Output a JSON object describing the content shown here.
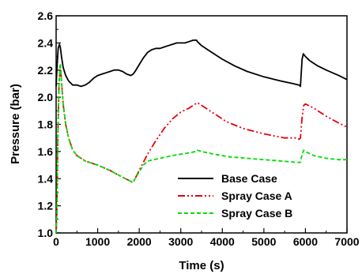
{
  "chart_data": {
    "type": "line",
    "title": "",
    "xlabel": "Time (s)",
    "ylabel": "Pressure (bar)",
    "xlim": [
      0,
      7000
    ],
    "ylim": [
      1.0,
      2.6
    ],
    "xticks": [
      0,
      1000,
      2000,
      3000,
      4000,
      5000,
      6000,
      7000
    ],
    "yticks": [
      1.0,
      1.2,
      1.4,
      1.6,
      1.8,
      2.0,
      2.2,
      2.4,
      2.6
    ],
    "ytick_labels": [
      "1.0",
      "1.2",
      "1.4",
      "1.6",
      "1.8",
      "2.0",
      "2.2",
      "2.4",
      "2.6"
    ],
    "grid": false,
    "legend_position": "lower-right",
    "series": [
      {
        "name": "Base Case",
        "color": "#000000",
        "dash": "solid",
        "x": [
          0,
          20,
          50,
          80,
          100,
          130,
          170,
          230,
          300,
          400,
          500,
          600,
          700,
          800,
          900,
          1000,
          1100,
          1200,
          1300,
          1400,
          1500,
          1600,
          1700,
          1800,
          1850,
          1900,
          2000,
          2100,
          2200,
          2300,
          2400,
          2500,
          2600,
          2700,
          2800,
          2900,
          3000,
          3100,
          3200,
          3300,
          3380,
          3400,
          3500,
          3700,
          4000,
          4300,
          4600,
          5000,
          5400,
          5700,
          5850,
          5880,
          5920,
          5950,
          6000,
          6100,
          6300,
          6500,
          6800,
          7000
        ],
        "y": [
          2.08,
          2.22,
          2.36,
          2.39,
          2.37,
          2.3,
          2.22,
          2.16,
          2.12,
          2.09,
          2.09,
          2.08,
          2.09,
          2.11,
          2.14,
          2.16,
          2.17,
          2.18,
          2.19,
          2.2,
          2.2,
          2.19,
          2.17,
          2.16,
          2.17,
          2.19,
          2.24,
          2.29,
          2.33,
          2.35,
          2.36,
          2.36,
          2.37,
          2.38,
          2.39,
          2.4,
          2.4,
          2.4,
          2.41,
          2.42,
          2.42,
          2.41,
          2.38,
          2.34,
          2.28,
          2.23,
          2.19,
          2.15,
          2.12,
          2.1,
          2.09,
          2.08,
          2.28,
          2.32,
          2.3,
          2.27,
          2.23,
          2.2,
          2.16,
          2.13
        ]
      },
      {
        "name": "Spray Case A",
        "color": "#e8000b",
        "dash": "dash-dot-dot",
        "x": [
          0,
          20,
          40,
          70,
          100,
          130,
          170,
          230,
          300,
          400,
          500,
          700,
          1000,
          1300,
          1600,
          1800,
          1850,
          1900,
          2000,
          2100,
          2200,
          2400,
          2600,
          2800,
          3000,
          3200,
          3350,
          3400,
          3500,
          3800,
          4100,
          4500,
          5000,
          5500,
          5800,
          5850,
          5880,
          5920,
          5960,
          6000,
          6200,
          6500,
          6800,
          7000
        ],
        "y": [
          1.0,
          1.15,
          1.7,
          2.1,
          2.24,
          2.12,
          1.95,
          1.8,
          1.7,
          1.61,
          1.57,
          1.53,
          1.5,
          1.46,
          1.41,
          1.38,
          1.37,
          1.4,
          1.46,
          1.52,
          1.58,
          1.68,
          1.77,
          1.84,
          1.89,
          1.92,
          1.95,
          1.96,
          1.94,
          1.88,
          1.82,
          1.77,
          1.73,
          1.7,
          1.7,
          1.69,
          1.7,
          1.85,
          1.94,
          1.95,
          1.92,
          1.86,
          1.81,
          1.78
        ]
      },
      {
        "name": "Spray Case B",
        "color": "#00dd00",
        "dash": "dashed",
        "x": [
          0,
          20,
          40,
          70,
          100,
          130,
          170,
          230,
          300,
          400,
          500,
          700,
          1000,
          1300,
          1600,
          1800,
          1850,
          1900,
          2000,
          2100,
          2200,
          2500,
          2800,
          3000,
          3200,
          3350,
          3400,
          3500,
          3800,
          4200,
          4600,
          5000,
          5400,
          5800,
          5850,
          5880,
          5920,
          5960,
          6000,
          6200,
          6500,
          6800,
          7000
        ],
        "y": [
          1.0,
          1.15,
          1.7,
          2.1,
          2.25,
          2.12,
          1.95,
          1.8,
          1.7,
          1.61,
          1.57,
          1.53,
          1.5,
          1.46,
          1.41,
          1.38,
          1.37,
          1.4,
          1.45,
          1.5,
          1.53,
          1.55,
          1.57,
          1.58,
          1.59,
          1.6,
          1.61,
          1.6,
          1.58,
          1.56,
          1.55,
          1.54,
          1.53,
          1.52,
          1.52,
          1.52,
          1.58,
          1.61,
          1.6,
          1.57,
          1.55,
          1.54,
          1.54
        ]
      }
    ]
  }
}
